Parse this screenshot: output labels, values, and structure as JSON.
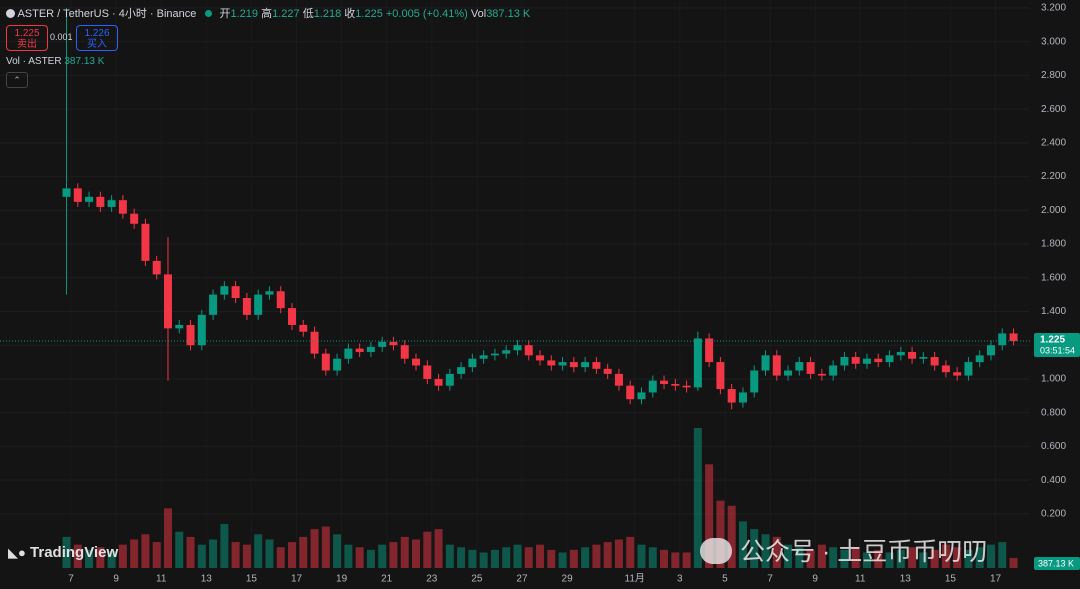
{
  "header": {
    "symbol": "ASTER / TetherUS · 4小时 · Binance",
    "o_label": "开",
    "open": "1.219",
    "h_label": "高",
    "high": "1.227",
    "l_label": "低",
    "low": "1.218",
    "c_label": "收",
    "close": "1.225",
    "change": "+0.005 (+0.41%)",
    "vol_label": "Vol",
    "vol": "387.13 K"
  },
  "trade": {
    "sell_price": "1.225",
    "sell": "卖出",
    "spread": "0.001",
    "buy_price": "1.226",
    "buy": "买入"
  },
  "volume_legend": {
    "name": "Vol · ASTER",
    "value": "387.13 K"
  },
  "logo": "TradingView",
  "watermark": "公众号 · 土豆币币叨叨",
  "chart_data": {
    "type": "candlestick",
    "up_color": "#089981",
    "down_color": "#f23645",
    "x": [
      -0.2,
      0.3,
      0.8,
      1.3,
      1.8,
      2.3,
      2.8,
      3.3,
      3.8,
      4.3,
      4.8,
      5.3,
      5.8,
      6.3,
      6.8,
      7.3,
      7.8,
      8.3,
      8.8,
      9.3,
      9.8,
      10.3,
      10.8,
      11.3,
      11.8,
      12.3,
      12.8,
      13.3,
      13.8,
      14.3,
      14.8,
      15.3,
      15.8,
      16.3,
      16.8,
      17.3,
      17.8,
      18.3,
      18.8,
      19.3,
      19.8,
      20.3,
      20.8,
      21.3,
      21.8,
      22.3,
      22.8,
      23.3,
      23.8,
      24.3,
      24.8,
      25.3,
      25.8,
      26.3,
      26.8,
      27.3,
      27.8,
      28.3,
      28.8,
      29.3,
      29.8,
      30.3,
      30.8,
      31.3,
      31.8,
      32.3,
      32.8,
      33.3,
      33.8,
      34.3,
      34.8,
      35.3,
      35.8,
      36.3,
      36.8,
      37.3,
      37.8,
      38.3,
      38.8,
      39.3,
      39.8,
      40.3,
      40.8,
      41.3,
      41.8
    ],
    "open": [
      2.08,
      2.13,
      2.05,
      2.08,
      2.02,
      2.06,
      1.98,
      1.92,
      1.7,
      1.62,
      1.3,
      1.32,
      1.2,
      1.38,
      1.5,
      1.55,
      1.48,
      1.38,
      1.5,
      1.52,
      1.42,
      1.32,
      1.28,
      1.15,
      1.05,
      1.12,
      1.18,
      1.16,
      1.19,
      1.22,
      1.2,
      1.12,
      1.08,
      1.0,
      0.96,
      1.03,
      1.07,
      1.12,
      1.14,
      1.15,
      1.17,
      1.2,
      1.14,
      1.11,
      1.08,
      1.1,
      1.07,
      1.1,
      1.06,
      1.03,
      0.96,
      0.88,
      0.92,
      0.99,
      0.97,
      0.96,
      0.95,
      1.24,
      1.1,
      0.94,
      0.86,
      0.92,
      1.05,
      1.14,
      1.02,
      1.05,
      1.1,
      1.03,
      1.02,
      1.08,
      1.13,
      1.09,
      1.12,
      1.1,
      1.14,
      1.16,
      1.12,
      1.13,
      1.08,
      1.04,
      1.02,
      1.1,
      1.14,
      1.2,
      1.27
    ],
    "high": [
      3.2,
      2.16,
      2.11,
      2.11,
      2.09,
      2.09,
      2.01,
      1.95,
      1.73,
      1.84,
      1.35,
      1.35,
      1.41,
      1.53,
      1.58,
      1.58,
      1.51,
      1.53,
      1.55,
      1.55,
      1.45,
      1.35,
      1.31,
      1.18,
      1.15,
      1.21,
      1.21,
      1.22,
      1.25,
      1.25,
      1.23,
      1.15,
      1.11,
      1.03,
      1.06,
      1.1,
      1.15,
      1.17,
      1.18,
      1.2,
      1.23,
      1.23,
      1.17,
      1.14,
      1.13,
      1.13,
      1.13,
      1.13,
      1.09,
      1.06,
      0.99,
      0.95,
      1.02,
      1.02,
      1.0,
      0.99,
      1.28,
      1.27,
      1.13,
      0.97,
      0.95,
      1.08,
      1.17,
      1.17,
      1.08,
      1.13,
      1.13,
      1.06,
      1.11,
      1.16,
      1.16,
      1.15,
      1.15,
      1.17,
      1.19,
      1.19,
      1.16,
      1.16,
      1.11,
      1.07,
      1.13,
      1.17,
      1.23,
      1.3,
      1.3
    ],
    "low": [
      1.5,
      2.02,
      2.02,
      1.99,
      1.99,
      1.95,
      1.89,
      1.67,
      1.59,
      0.99,
      1.27,
      1.17,
      1.17,
      1.35,
      1.47,
      1.45,
      1.35,
      1.35,
      1.47,
      1.39,
      1.29,
      1.25,
      1.12,
      1.02,
      1.02,
      1.09,
      1.13,
      1.13,
      1.16,
      1.17,
      1.09,
      1.05,
      0.97,
      0.93,
      0.93,
      1.0,
      1.04,
      1.09,
      1.11,
      1.12,
      1.14,
      1.11,
      1.08,
      1.05,
      1.05,
      1.04,
      1.04,
      1.03,
      1.0,
      0.93,
      0.85,
      0.85,
      0.89,
      0.94,
      0.93,
      0.92,
      0.93,
      1.07,
      0.91,
      0.82,
      0.83,
      0.89,
      1.02,
      0.99,
      0.99,
      1.02,
      1.0,
      0.99,
      0.99,
      1.05,
      1.06,
      1.06,
      1.07,
      1.07,
      1.11,
      1.09,
      1.09,
      1.05,
      1.01,
      0.99,
      0.99,
      1.07,
      1.11,
      1.17,
      1.2
    ],
    "close": [
      2.13,
      2.05,
      2.08,
      2.02,
      2.06,
      1.98,
      1.92,
      1.7,
      1.62,
      1.3,
      1.32,
      1.2,
      1.38,
      1.5,
      1.55,
      1.48,
      1.38,
      1.5,
      1.52,
      1.42,
      1.32,
      1.28,
      1.15,
      1.05,
      1.12,
      1.18,
      1.16,
      1.19,
      1.22,
      1.2,
      1.12,
      1.08,
      1.0,
      0.96,
      1.03,
      1.07,
      1.12,
      1.14,
      1.15,
      1.17,
      1.2,
      1.14,
      1.11,
      1.08,
      1.1,
      1.07,
      1.1,
      1.06,
      1.03,
      0.96,
      0.88,
      0.92,
      0.99,
      0.97,
      0.96,
      0.95,
      1.24,
      1.1,
      0.94,
      0.86,
      0.92,
      1.05,
      1.14,
      1.02,
      1.05,
      1.1,
      1.03,
      1.02,
      1.08,
      1.13,
      1.09,
      1.12,
      1.1,
      1.14,
      1.16,
      1.12,
      1.13,
      1.08,
      1.04,
      1.02,
      1.1,
      1.14,
      1.2,
      1.27,
      1.225
    ],
    "volume": [
      1200,
      900,
      700,
      800,
      650,
      900,
      1100,
      1300,
      1000,
      2300,
      1400,
      1200,
      900,
      1100,
      1700,
      1000,
      900,
      1300,
      1100,
      800,
      1000,
      1200,
      1500,
      1600,
      1300,
      900,
      800,
      700,
      900,
      1000,
      1200,
      1100,
      1400,
      1500,
      900,
      800,
      700,
      600,
      700,
      800,
      900,
      800,
      900,
      700,
      600,
      700,
      800,
      900,
      1000,
      1100,
      1200,
      900,
      800,
      700,
      600,
      600,
      5400,
      4000,
      2600,
      2400,
      1800,
      1500,
      1300,
      1200,
      900,
      800,
      700,
      900,
      800,
      700,
      800,
      600,
      700,
      600,
      700,
      800,
      600,
      700,
      900,
      800,
      700,
      800,
      900,
      1000,
      387.13
    ],
    "volume_label": "387.13 K",
    "last_price": {
      "value": 1.225,
      "label": "1.225"
    },
    "countdown": "03:51:54",
    "xlim": [
      -3.15,
      42.53
    ],
    "xticks": [
      {
        "value": 0,
        "label": "7"
      },
      {
        "value": 2,
        "label": "9"
      },
      {
        "value": 4,
        "label": "11"
      },
      {
        "value": 6,
        "label": "13"
      },
      {
        "value": 8,
        "label": "15"
      },
      {
        "value": 10,
        "label": "17"
      },
      {
        "value": 12,
        "label": "19"
      },
      {
        "value": 14,
        "label": "21"
      },
      {
        "value": 16,
        "label": "23"
      },
      {
        "value": 18,
        "label": "25"
      },
      {
        "value": 20,
        "label": "27"
      },
      {
        "value": 22,
        "label": "29"
      },
      {
        "value": 25,
        "label": "11月"
      },
      {
        "value": 27,
        "label": "3"
      },
      {
        "value": 29,
        "label": "5"
      },
      {
        "value": 31,
        "label": "7"
      },
      {
        "value": 33,
        "label": "9"
      },
      {
        "value": 35,
        "label": "11"
      },
      {
        "value": 37,
        "label": "13"
      },
      {
        "value": 39,
        "label": "15"
      },
      {
        "value": 41,
        "label": "17"
      }
    ],
    "ylim": [
      -0.121,
      3.247
    ],
    "yticks": [
      {
        "value": 0.2,
        "label": "0.200"
      },
      {
        "value": 0.4,
        "label": "0.400"
      },
      {
        "value": 0.6,
        "label": "0.600"
      },
      {
        "value": 0.8,
        "label": "0.800"
      },
      {
        "value": 1,
        "label": "1.000"
      },
      {
        "value": 1.2,
        "label": "1.200"
      },
      {
        "value": 1.4,
        "label": "1.400"
      },
      {
        "value": 1.6,
        "label": "1.600"
      },
      {
        "value": 1.8,
        "label": "1.800"
      },
      {
        "value": 2,
        "label": "2.000"
      },
      {
        "value": 2.2,
        "label": "2.200"
      },
      {
        "value": 2.4,
        "label": "2.400"
      },
      {
        "value": 2.6,
        "label": "2.600"
      },
      {
        "value": 2.8,
        "label": "2.800"
      },
      {
        "value": 3,
        "label": "3.000"
      },
      {
        "value": 3.2,
        "label": "3.200"
      }
    ]
  }
}
